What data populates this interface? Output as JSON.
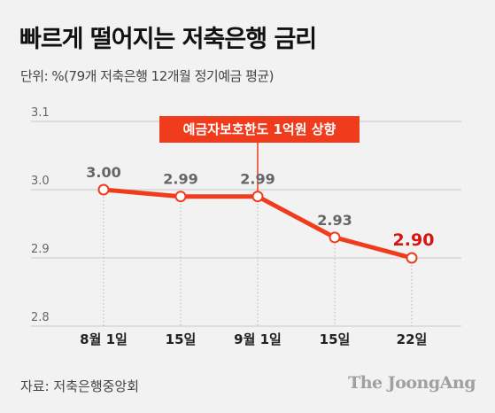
{
  "title": "빠르게 떨어지는 저축은행 금리",
  "unit_note": "단위: %(79개 저축은행 12개월 정기예금 평균)",
  "source": "자료: 저축은행중앙회",
  "brand": "The JoongAng",
  "colors": {
    "line": "#f03c1c",
    "highlight_label": "#d8140f",
    "grid": "#c8c8c8",
    "label": "#666666",
    "background": "#f2f2f2"
  },
  "chart_data": {
    "type": "line",
    "title": "빠르게 떨어지는 저축은행 금리",
    "categories": [
      "8월 1일",
      "15일",
      "9월 1일",
      "15일",
      "22일"
    ],
    "series": [
      {
        "values": [
          3.0,
          2.99,
          2.99,
          2.93,
          2.9
        ]
      }
    ],
    "value_labels": [
      "3.00",
      "2.99",
      "2.99",
      "2.93",
      "2.90"
    ],
    "highlight_index": 4,
    "y_ticks": [
      "3.1",
      "3.0",
      "2.9",
      "2.8"
    ],
    "y_tick_values": [
      3.1,
      3.0,
      2.9,
      2.8
    ],
    "ylim": [
      2.8,
      3.1
    ],
    "grid": true,
    "annotation": {
      "text": "예금자보호한도 1억원 상향",
      "at_index": 2
    }
  }
}
